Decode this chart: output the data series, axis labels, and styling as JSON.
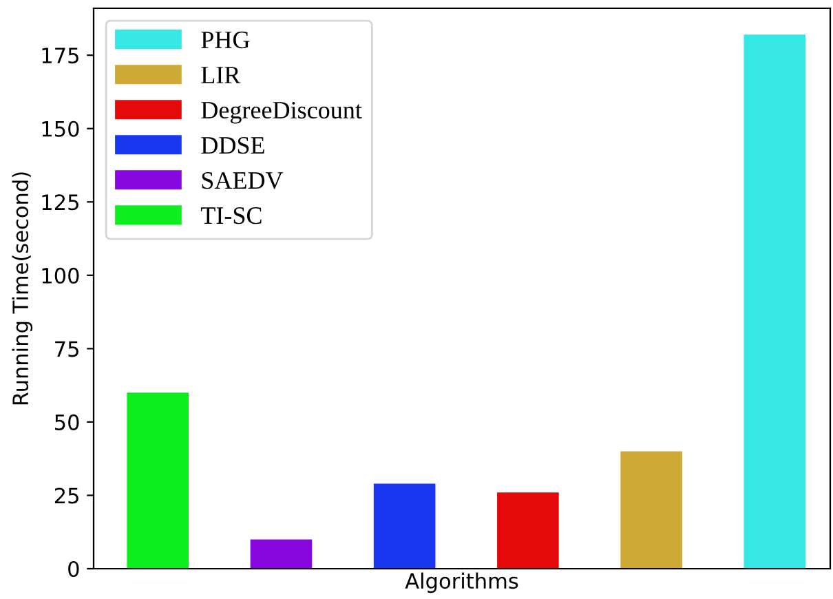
{
  "chart_data": {
    "type": "bar",
    "xlabel": "Algorithms",
    "ylabel": "Running Time(second)",
    "categories": [
      null,
      null,
      null,
      null,
      null,
      null
    ],
    "series": [
      {
        "name": "PHG",
        "color": "#36e8e5",
        "values": [
          null,
          null,
          null,
          null,
          null,
          182
        ]
      },
      {
        "name": "LIR",
        "color": "#cfa935",
        "values": [
          null,
          null,
          null,
          null,
          40,
          null
        ]
      },
      {
        "name": "DegreeDiscount",
        "color": "#e50a0a",
        "values": [
          null,
          null,
          null,
          26,
          null,
          null
        ]
      },
      {
        "name": "DDSE",
        "color": "#1a37f0",
        "values": [
          null,
          null,
          29,
          null,
          null,
          null
        ]
      },
      {
        "name": "SAEDV",
        "color": "#8607e0",
        "values": [
          null,
          10,
          null,
          null,
          null,
          null
        ]
      },
      {
        "name": "TI-SC",
        "color": "#0ded1f",
        "values": [
          60,
          null,
          null,
          null,
          null,
          null
        ]
      }
    ],
    "ylim": [
      0,
      191
    ],
    "yticks": [
      0,
      25,
      50,
      75,
      100,
      125,
      150,
      175
    ],
    "grid": false,
    "legend": "top left",
    "tick_labels": "y"
  }
}
